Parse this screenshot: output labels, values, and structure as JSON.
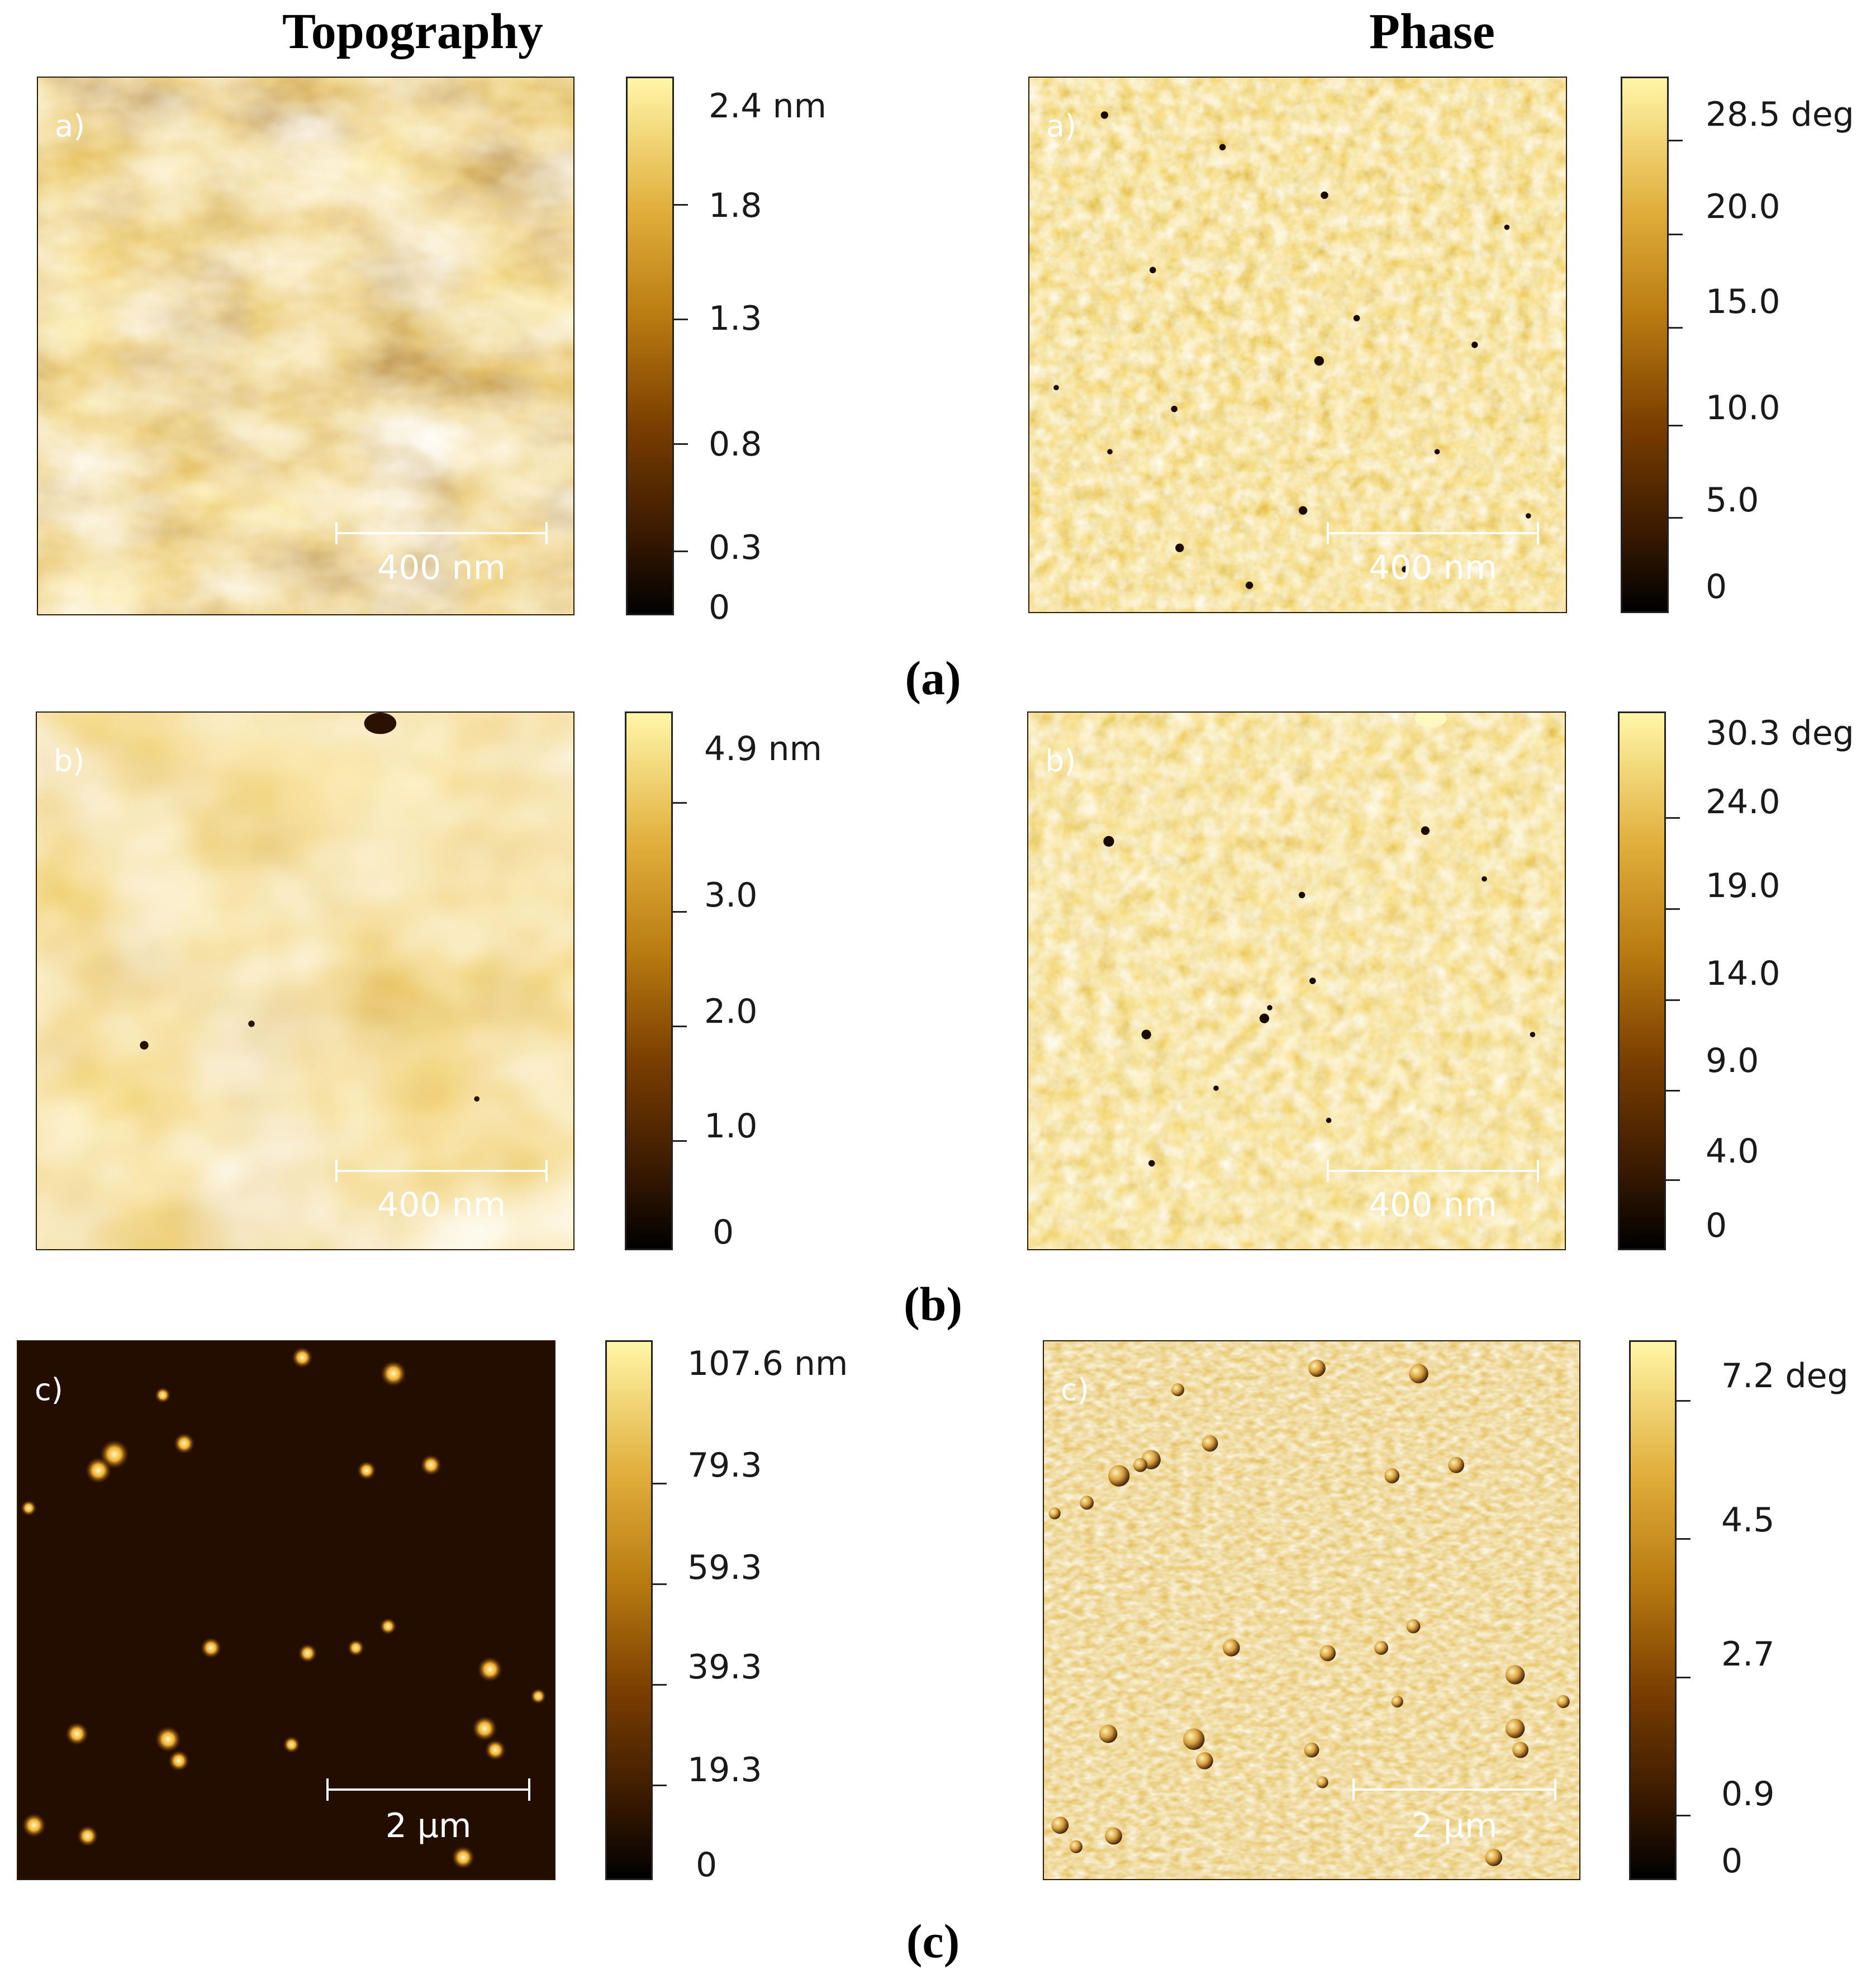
{
  "headers": {
    "left": "Topography",
    "right": "Phase"
  },
  "captions": {
    "a": "(a)",
    "b": "(b)",
    "c": "(c)"
  },
  "rows": {
    "a": {
      "topo": {
        "label": "a)",
        "scale": "400 nm",
        "ticks": [
          "2.4 nm",
          "1.8",
          "1.3",
          "0.8",
          "0.3",
          "0"
        ]
      },
      "phase": {
        "label": "a)",
        "scale": "400 nm",
        "ticks": [
          "28.5 deg",
          "20.0",
          "15.0",
          "10.0",
          "5.0",
          "0"
        ]
      }
    },
    "b": {
      "topo": {
        "label": "b)",
        "scale": "400 nm",
        "ticks": [
          "4.9 nm",
          "3.0",
          "2.0",
          "1.0",
          "0"
        ]
      },
      "phase": {
        "label": "b)",
        "scale": "400 nm",
        "ticks": [
          "30.3 deg",
          "24.0",
          "19.0",
          "14.0",
          "9.0",
          "4.0",
          "0"
        ]
      }
    },
    "c": {
      "topo": {
        "label": "c)",
        "scale": "2 µm",
        "ticks": [
          "107.6 nm",
          "79.3",
          "59.3",
          "39.3",
          "19.3",
          "0"
        ]
      },
      "phase": {
        "label": "c)",
        "scale": "2 µm",
        "ticks": [
          "7.2 deg",
          "4.5",
          "2.7",
          "0.9",
          "0"
        ]
      }
    }
  }
}
